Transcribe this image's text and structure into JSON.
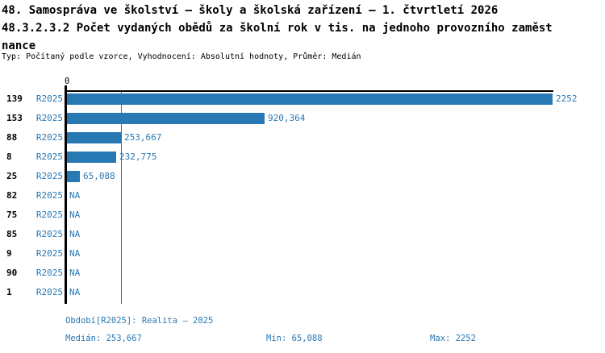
{
  "header": {
    "title_line1": "48. Samospráva ve školství – školy a školská zařízení – 1. čtvrtletí 2026",
    "title_line2": "48.3.2.3.2 Počet vydaných obědů za školní rok v tis. na jednoho provozního zaměst",
    "title_line3": "nance",
    "meta": "Typ: Počítaný podle vzorce, Vyhodnocení: Absolutní hodnoty, Průměr: Medián"
  },
  "colors": {
    "accent_blue": "#2878b4",
    "axis_black": "#000000"
  },
  "chart_data": {
    "type": "bar",
    "orientation": "horizontal",
    "x_origin_label": "0",
    "xlim": [
      0,
      2252
    ],
    "grid": false,
    "legend_position": "none",
    "series_name": "R2025",
    "categories": [
      "139",
      "153",
      "88",
      "8",
      "25",
      "82",
      "75",
      "85",
      "9",
      "90",
      "1"
    ],
    "rows": [
      {
        "category": "139",
        "period": "R2025",
        "value": 2252,
        "label": "2252"
      },
      {
        "category": "153",
        "period": "R2025",
        "value": 920.364,
        "label": "920,364"
      },
      {
        "category": "88",
        "period": "R2025",
        "value": 253.667,
        "label": "253,667"
      },
      {
        "category": "8",
        "period": "R2025",
        "value": 232.775,
        "label": "232,775"
      },
      {
        "category": "25",
        "period": "R2025",
        "value": 65.088,
        "label": "65,088"
      },
      {
        "category": "82",
        "period": "R2025",
        "value": null,
        "label": "NA"
      },
      {
        "category": "75",
        "period": "R2025",
        "value": null,
        "label": "NA"
      },
      {
        "category": "85",
        "period": "R2025",
        "value": null,
        "label": "NA"
      },
      {
        "category": "9",
        "period": "R2025",
        "value": null,
        "label": "NA"
      },
      {
        "category": "90",
        "period": "R2025",
        "value": null,
        "label": "NA"
      },
      {
        "category": "1",
        "period": "R2025",
        "value": null,
        "label": "NA"
      }
    ],
    "median": 253.667,
    "min": 65.088,
    "max": 2252
  },
  "footer": {
    "period": "Období[R2025]: Realita – 2025",
    "median": "Medián: 253,667",
    "min": "Min: 65,088",
    "max": "Max: 2252"
  }
}
